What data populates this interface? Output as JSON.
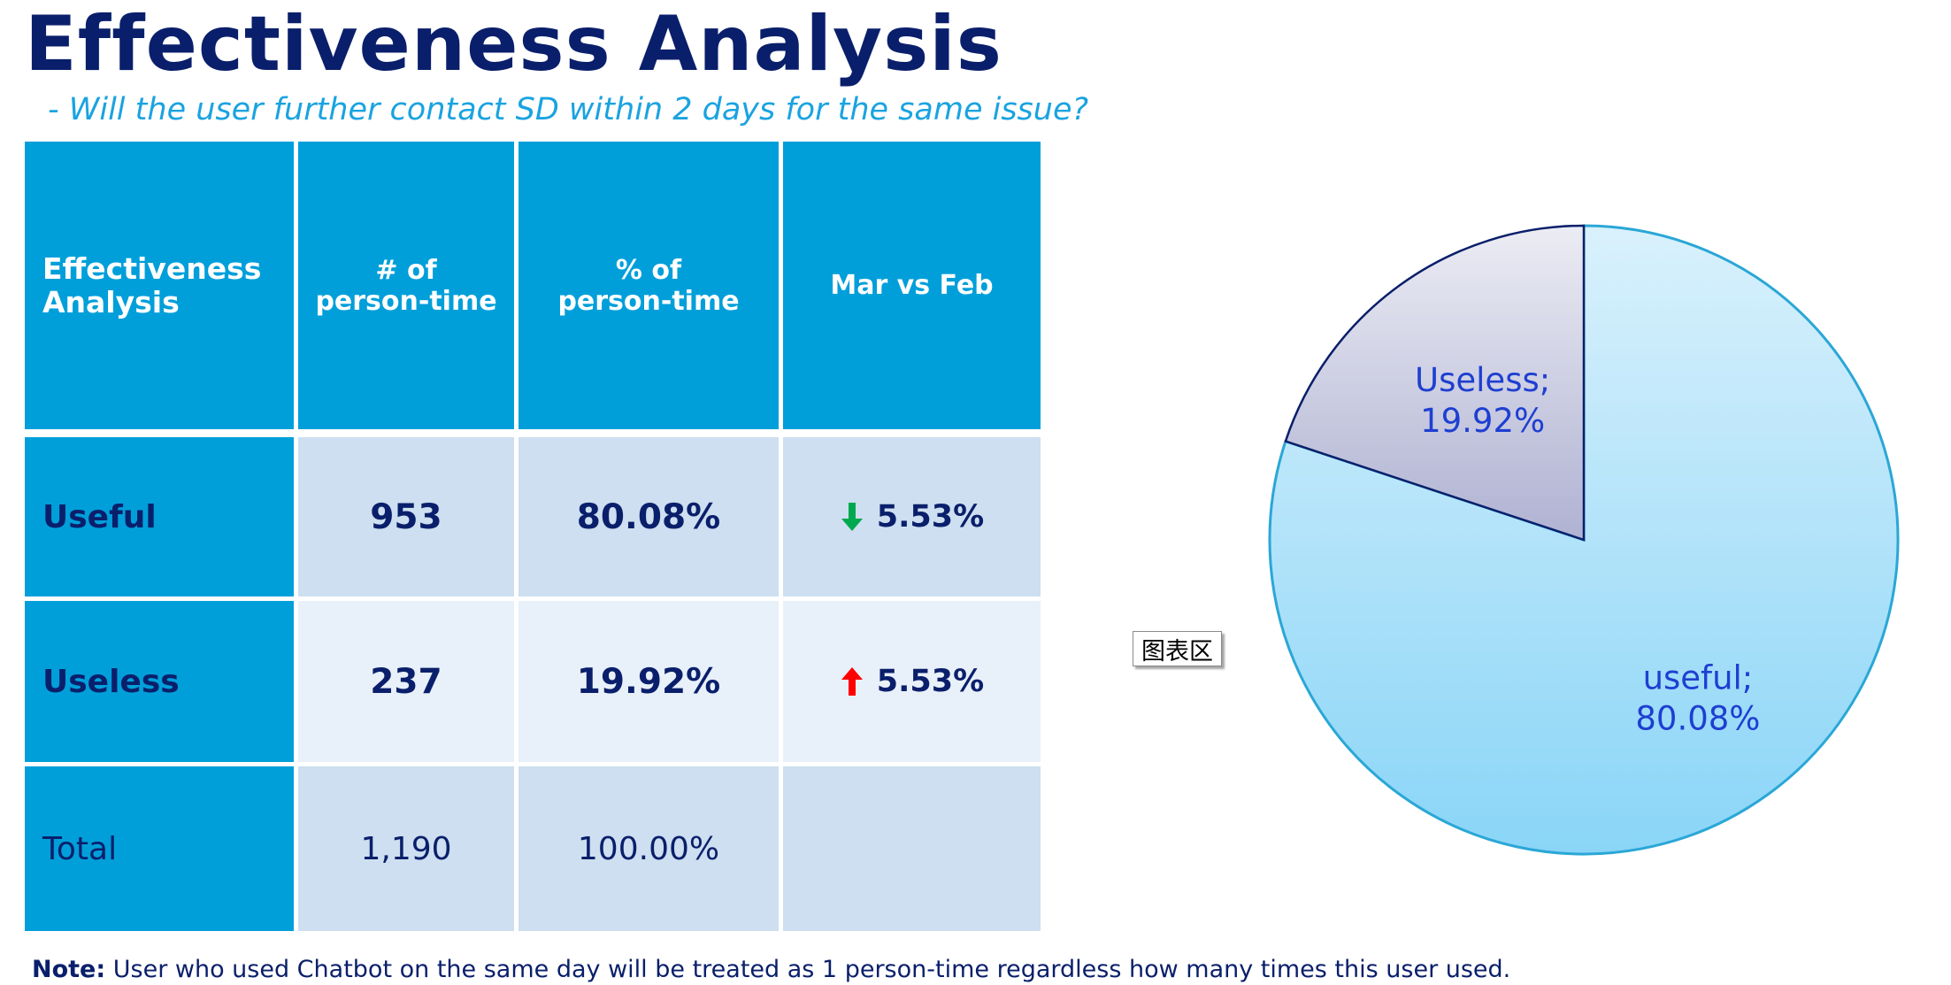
{
  "title": "Effectiveness Analysis",
  "subtitle": "- Will the user further contact SD within 2 days for the same issue?",
  "table": {
    "headers": {
      "col1_line1": "Effectiveness",
      "col1_line2": "Analysis",
      "col2_line1": "# of",
      "col2_line2": "person-time",
      "col3_line1": "% of",
      "col3_line2": "person-time",
      "col4": "Mar vs Feb"
    },
    "rows": [
      {
        "label": "Useful",
        "count": "953",
        "percent": "80.08%",
        "change": "5.53%",
        "direction": "down",
        "arrow_color": "#00a94f"
      },
      {
        "label": "Useless",
        "count": "237",
        "percent": "19.92%",
        "change": "5.53%",
        "direction": "up",
        "arrow_color": "#ff0000"
      },
      {
        "label": "Total",
        "count": "1,190",
        "percent": "100.00%",
        "change": ""
      }
    ]
  },
  "note": {
    "label": "Note:",
    "text": " User who used Chatbot on the same day will be treated as 1 person-time regardless how many times this user used."
  },
  "chart_area_label": "图表区",
  "chart_data": {
    "type": "pie",
    "categories": [
      "useful",
      "Useless"
    ],
    "values": [
      80.08,
      19.92
    ],
    "labels": [
      {
        "line1": "useful;",
        "line2": "80.08%"
      },
      {
        "line1": "Useless;",
        "line2": "19.92%"
      }
    ],
    "start": "12 o'clock",
    "direction": "clockwise",
    "colors": {
      "useful_top": "#d9f1fc",
      "useful_bottom": "#8ad5f7",
      "useful_border": "#2aa7d6",
      "useless_top": "#ececf4",
      "useless_bottom": "#afb2d2",
      "useless_border": "#0a1f6b",
      "label": "#1e3fd1"
    }
  }
}
